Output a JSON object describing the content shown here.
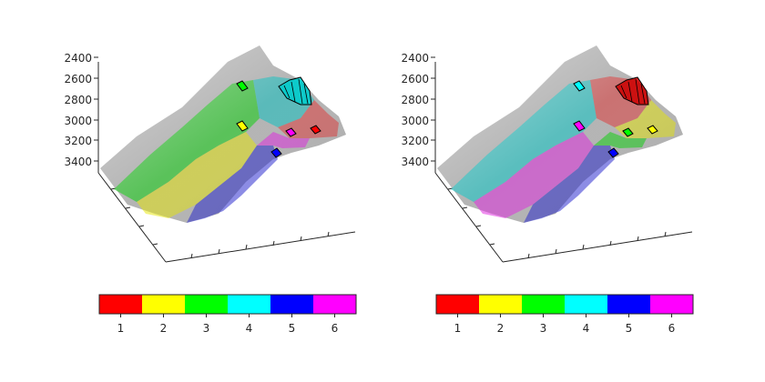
{
  "figure": {
    "colormap": [
      {
        "label": "1",
        "color": "#ff0000"
      },
      {
        "label": "2",
        "color": "#ffff00"
      },
      {
        "label": "3",
        "color": "#00ff00"
      },
      {
        "label": "4",
        "color": "#00ffff"
      },
      {
        "label": "5",
        "color": "#0000ff"
      },
      {
        "label": "6",
        "color": "#ff00ff"
      }
    ],
    "z_ticks": [
      "2400",
      "2600",
      "2800",
      "3000",
      "3200",
      "3400"
    ],
    "panels": [
      {
        "region_colors": [
          "#00d000",
          "#e6e600",
          "#1a1acc",
          "#00c0c0",
          "#e03030",
          "#e020e0"
        ],
        "well_colors": [
          "#00ff00",
          "#ffff00",
          "#0000ff",
          "#ff00ff",
          "#ff0000",
          "#00cccc"
        ]
      },
      {
        "region_colors": [
          "#00c8c8",
          "#e020e0",
          "#1a1acc",
          "#e03030",
          "#e6e600",
          "#00d000"
        ],
        "well_colors": [
          "#00ffff",
          "#ff00ff",
          "#0000ff",
          "#00ff00",
          "#ffff00",
          "#cc0000"
        ]
      }
    ]
  }
}
